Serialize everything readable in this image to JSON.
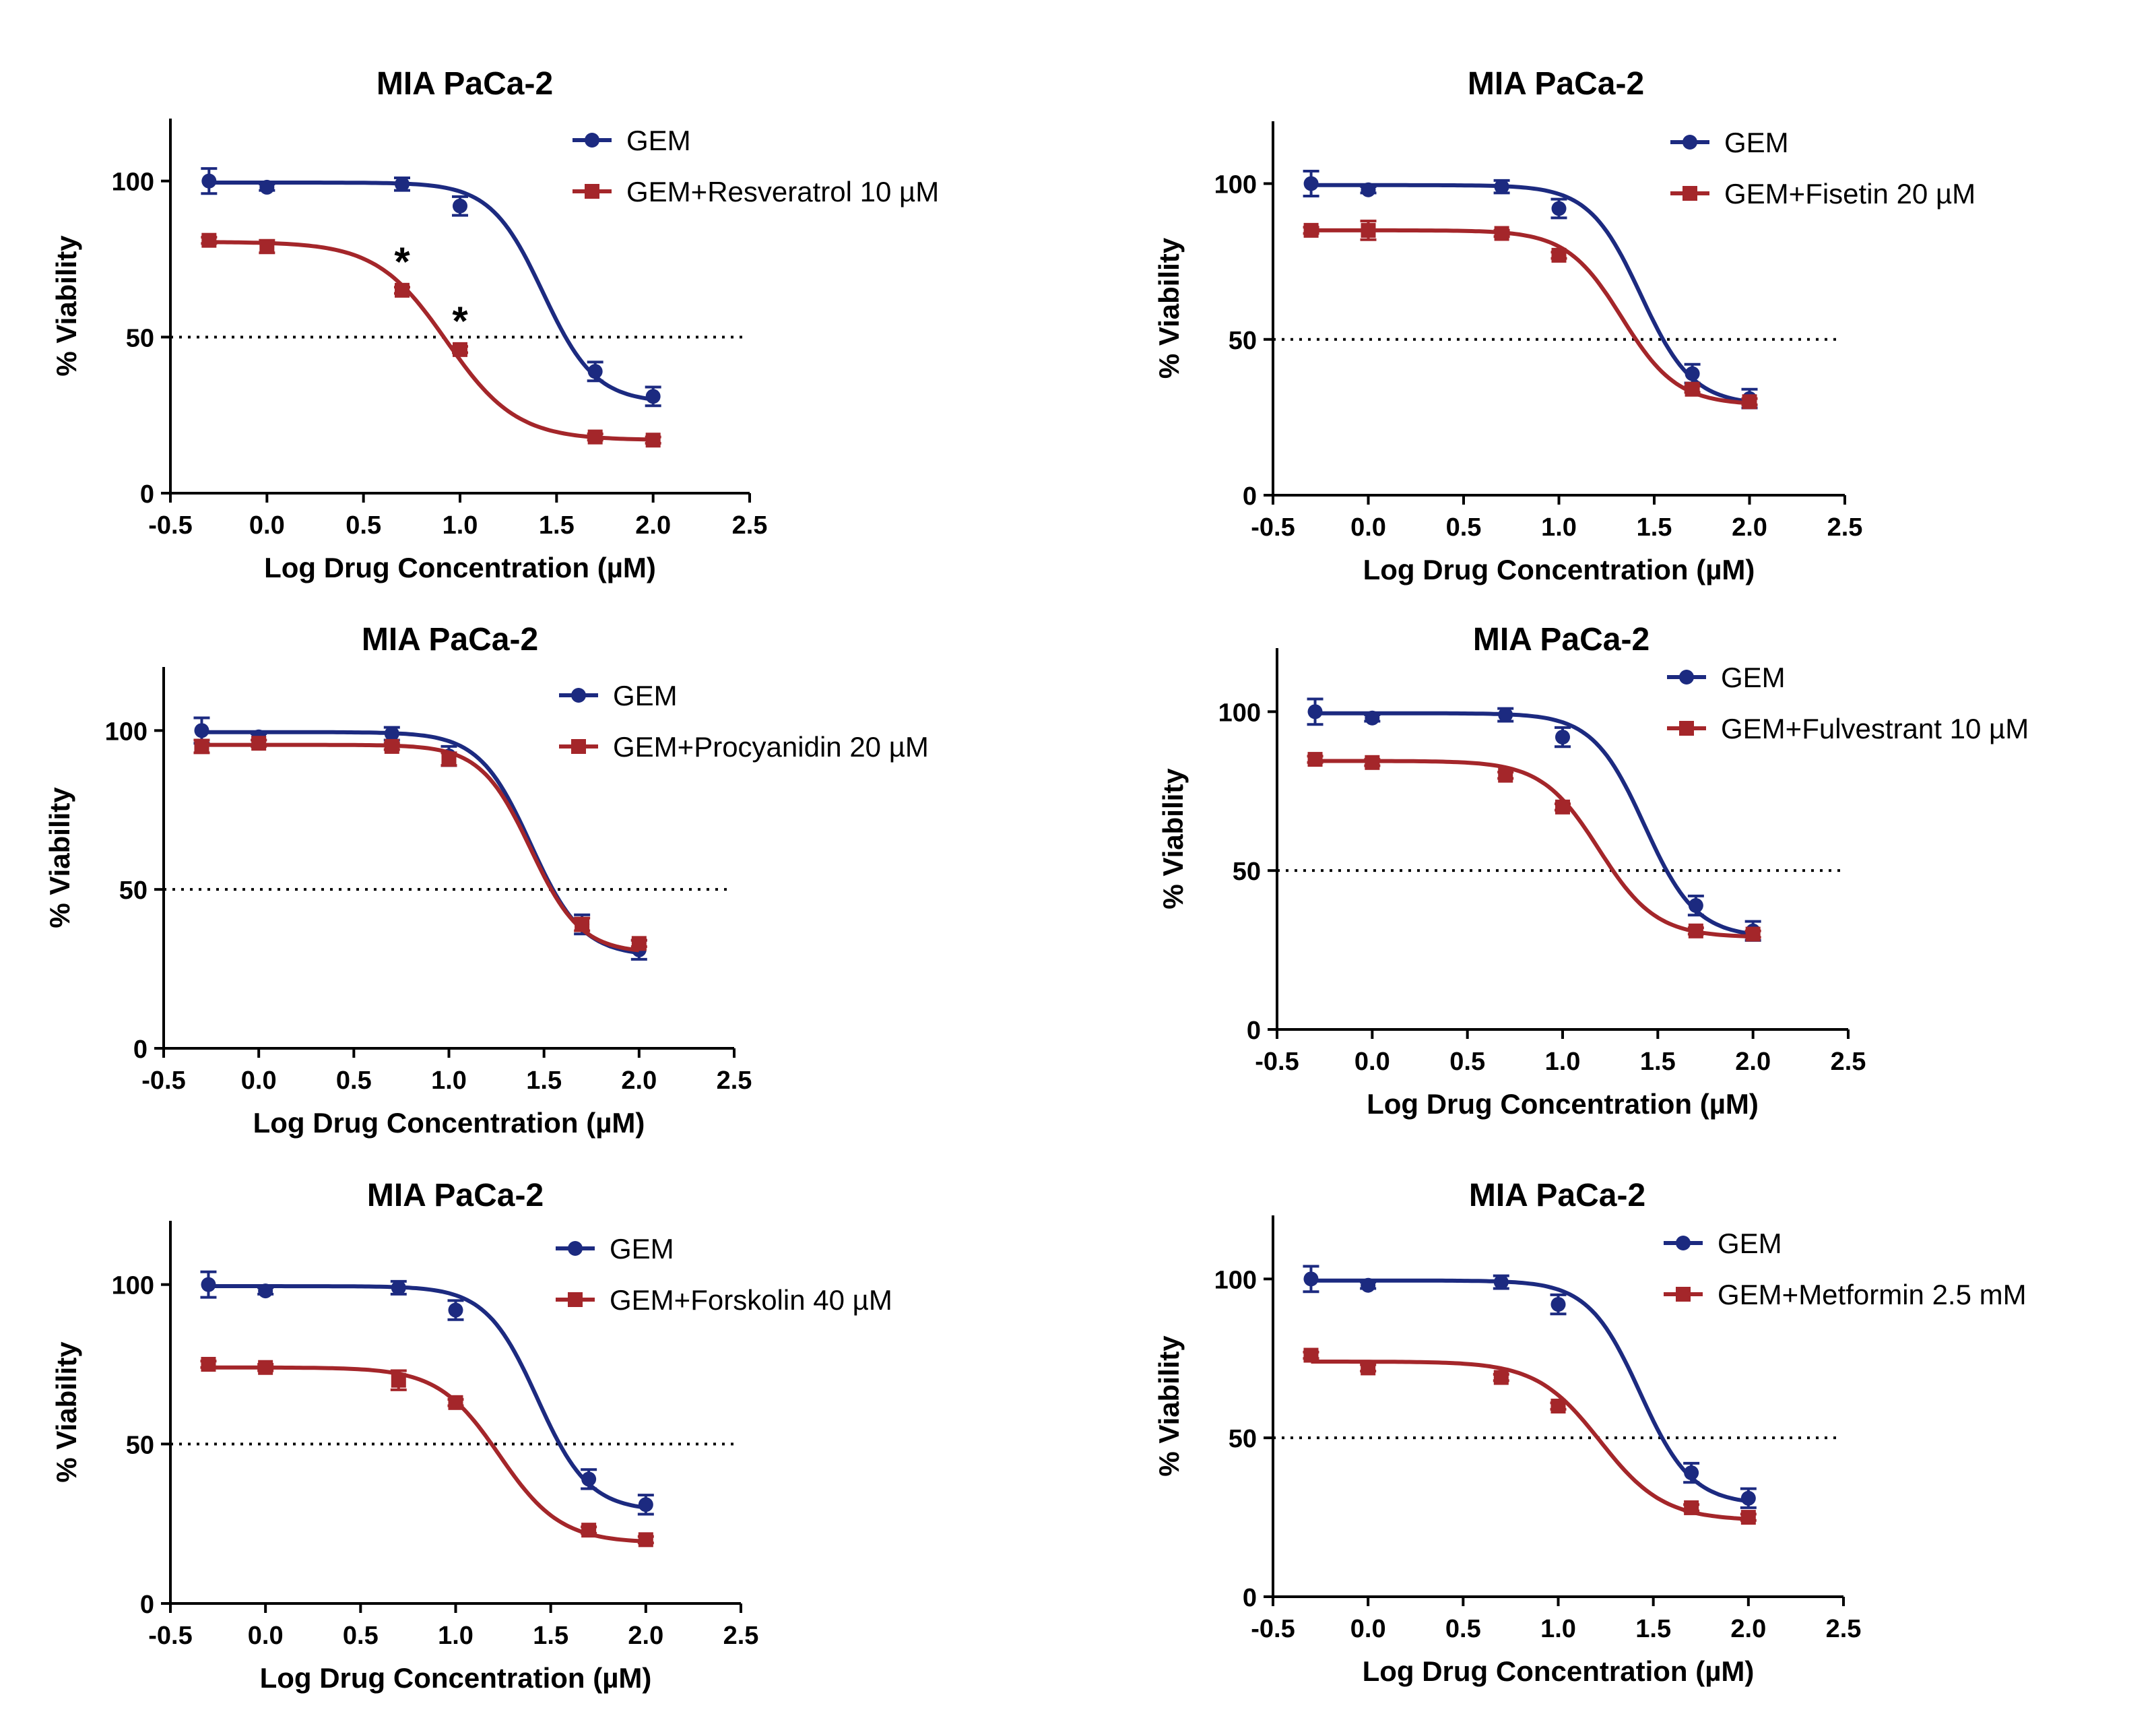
{
  "colors": {
    "gem": "#1c2a80",
    "combo": "#a4262a"
  },
  "chart_data": [
    {
      "type": "line",
      "title": "MIA PaCa-2",
      "xlabel": "Log Drug Concentration (µM)",
      "ylabel": "% Viability",
      "xlim": [
        -0.5,
        2.5
      ],
      "ylim": [
        0,
        120
      ],
      "xticks": [
        "-0.5",
        "0.0",
        "0.5",
        "1.0",
        "1.5",
        "2.0",
        "2.5"
      ],
      "yticks": [
        "0",
        "50",
        "100"
      ],
      "reference_line_y": 50,
      "legend": [
        "GEM",
        "GEM+Resveratrol 10 µM"
      ],
      "series": [
        {
          "name": "GEM",
          "x": [
            -0.3,
            0.0,
            0.7,
            1.0,
            1.7,
            2.0
          ],
          "y": [
            100,
            98,
            99,
            92,
            39,
            31
          ],
          "err": [
            4,
            1,
            2,
            3,
            3,
            3
          ],
          "fit": {
            "top": 99.5,
            "bottom": 29,
            "logic50": 1.43,
            "hill": 3.2
          }
        },
        {
          "name": "GEM+Resveratrol 10 µM",
          "x": [
            -0.3,
            0.0,
            0.7,
            1.0,
            1.7,
            2.0
          ],
          "y": [
            81,
            79,
            65,
            46,
            18,
            17
          ],
          "err": [
            1,
            2,
            1,
            1,
            1,
            1
          ],
          "fit": {
            "top": 80.5,
            "bottom": 17,
            "logic50": 0.93,
            "hill": 2.4
          }
        }
      ],
      "annotations": [
        {
          "text": "*",
          "x": 0.7,
          "y": 65
        },
        {
          "text": "*",
          "x": 1.0,
          "y": 46
        }
      ]
    },
    {
      "type": "line",
      "title": "MIA PaCa-2",
      "xlabel": "Log Drug Concentration (µM)",
      "ylabel": "% Viability",
      "xlim": [
        -0.5,
        2.5
      ],
      "ylim": [
        0,
        120
      ],
      "xticks": [
        "-0.5",
        "0.0",
        "0.5",
        "1.0",
        "1.5",
        "2.0",
        "2.5"
      ],
      "yticks": [
        "0",
        "50",
        "100"
      ],
      "reference_line_y": 50,
      "legend": [
        "GEM",
        "GEM+Fisetin 20 µM"
      ],
      "series": [
        {
          "name": "GEM",
          "x": [
            -0.3,
            0.0,
            0.7,
            1.0,
            1.7,
            2.0
          ],
          "y": [
            100,
            98,
            99,
            92,
            39,
            31
          ],
          "err": [
            4,
            1,
            2,
            3,
            3,
            3
          ],
          "fit": {
            "top": 99.5,
            "bottom": 29,
            "logic50": 1.43,
            "hill": 3.2
          }
        },
        {
          "name": "GEM+Fisetin 20 µM",
          "x": [
            -0.3,
            0.0,
            0.7,
            1.0,
            1.7,
            2.0
          ],
          "y": [
            85,
            85,
            84,
            77,
            34,
            30
          ],
          "err": [
            1,
            3,
            1,
            1,
            1,
            1
          ],
          "fit": {
            "top": 85,
            "bottom": 29,
            "logic50": 1.33,
            "hill": 3.0
          }
        }
      ],
      "annotations": []
    },
    {
      "type": "line",
      "title": "MIA PaCa-2",
      "xlabel": "Log Drug Concentration (µM)",
      "ylabel": "% Viability",
      "xlim": [
        -0.5,
        2.5
      ],
      "ylim": [
        0,
        120
      ],
      "xticks": [
        "-0.5",
        "0.0",
        "0.5",
        "1.0",
        "1.5",
        "2.0",
        "2.5"
      ],
      "yticks": [
        "0",
        "50",
        "100"
      ],
      "reference_line_y": 50,
      "legend": [
        "GEM",
        "GEM+Procyanidin 20 µM"
      ],
      "series": [
        {
          "name": "GEM",
          "x": [
            -0.3,
            0.0,
            0.7,
            1.0,
            1.7,
            2.0
          ],
          "y": [
            100,
            98,
            99,
            92,
            39,
            31
          ],
          "err": [
            4,
            1,
            2,
            3,
            3,
            3
          ],
          "fit": {
            "top": 99.5,
            "bottom": 29,
            "logic50": 1.43,
            "hill": 3.2
          }
        },
        {
          "name": "GEM+Procyanidin 20 µM",
          "x": [
            -0.3,
            0.0,
            0.7,
            1.0,
            1.7,
            2.0
          ],
          "y": [
            95,
            96,
            95,
            91,
            39,
            33
          ],
          "err": [
            2,
            1,
            1,
            2,
            2,
            1
          ],
          "fit": {
            "top": 95.5,
            "bottom": 30,
            "logic50": 1.43,
            "hill": 3.3
          }
        }
      ],
      "annotations": []
    },
    {
      "type": "line",
      "title": "MIA PaCa-2",
      "xlabel": "Log Drug Concentration (µM)",
      "ylabel": "% Viability",
      "xlim": [
        -0.5,
        2.5
      ],
      "ylim": [
        0,
        120
      ],
      "xticks": [
        "-0.5",
        "0.0",
        "0.5",
        "1.0",
        "1.5",
        "2.0",
        "2.5"
      ],
      "yticks": [
        "0",
        "50",
        "100"
      ],
      "reference_line_y": 50,
      "legend": [
        "GEM",
        "GEM+Fulvestrant 10 µM"
      ],
      "series": [
        {
          "name": "GEM",
          "x": [
            -0.3,
            0.0,
            0.7,
            1.0,
            1.7,
            2.0
          ],
          "y": [
            100,
            98,
            99,
            92,
            39,
            31
          ],
          "err": [
            4,
            1,
            2,
            3,
            3,
            3
          ],
          "fit": {
            "top": 99.5,
            "bottom": 29,
            "logic50": 1.43,
            "hill": 3.2
          }
        },
        {
          "name": "GEM+Fulvestrant 10 µM",
          "x": [
            -0.3,
            0.0,
            0.7,
            1.0,
            1.7,
            2.0
          ],
          "y": [
            85,
            84,
            80,
            70,
            31,
            30
          ],
          "err": [
            1,
            1,
            1,
            1,
            1,
            1
          ],
          "fit": {
            "top": 84.5,
            "bottom": 29,
            "logic50": 1.19,
            "hill": 2.9
          }
        }
      ],
      "annotations": []
    },
    {
      "type": "line",
      "title": "MIA PaCa-2",
      "xlabel": "Log Drug Concentration (µM)",
      "ylabel": "% Viability",
      "xlim": [
        -0.5,
        2.5
      ],
      "ylim": [
        0,
        120
      ],
      "xticks": [
        "-0.5",
        "0.0",
        "0.5",
        "1.0",
        "1.5",
        "2.0",
        "2.5"
      ],
      "yticks": [
        "0",
        "50",
        "100"
      ],
      "reference_line_y": 50,
      "legend": [
        "GEM",
        "GEM+Forskolin 40 µM"
      ],
      "series": [
        {
          "name": "GEM",
          "x": [
            -0.3,
            0.0,
            0.7,
            1.0,
            1.7,
            2.0
          ],
          "y": [
            100,
            98,
            99,
            92,
            39,
            31
          ],
          "err": [
            4,
            1,
            2,
            3,
            3,
            3
          ],
          "fit": {
            "top": 99.5,
            "bottom": 29,
            "logic50": 1.43,
            "hill": 3.2
          }
        },
        {
          "name": "GEM+Forskolin 40 µM",
          "x": [
            -0.3,
            0.0,
            0.7,
            1.0,
            1.7,
            2.0
          ],
          "y": [
            75,
            74,
            70,
            63,
            23,
            20
          ],
          "err": [
            1,
            1,
            3,
            1,
            1,
            1
          ],
          "fit": {
            "top": 74,
            "bottom": 19,
            "logic50": 1.23,
            "hill": 2.7
          }
        }
      ],
      "annotations": []
    },
    {
      "type": "line",
      "title": "MIA PaCa-2",
      "xlabel": "Log Drug Concentration (µM)",
      "ylabel": "% Viability",
      "xlim": [
        -0.5,
        2.5
      ],
      "ylim": [
        0,
        120
      ],
      "xticks": [
        "-0.5",
        "0.0",
        "0.5",
        "1.0",
        "1.5",
        "2.0",
        "2.5"
      ],
      "yticks": [
        "0",
        "50",
        "100"
      ],
      "reference_line_y": 50,
      "legend": [
        "GEM",
        "GEM+Metformin 2.5 mM"
      ],
      "series": [
        {
          "name": "GEM",
          "x": [
            -0.3,
            0.0,
            0.7,
            1.0,
            1.7,
            2.0
          ],
          "y": [
            100,
            98,
            99,
            92,
            39,
            31
          ],
          "err": [
            4,
            1,
            2,
            3,
            3,
            3
          ],
          "fit": {
            "top": 99.5,
            "bottom": 29,
            "logic50": 1.43,
            "hill": 3.2
          }
        },
        {
          "name": "GEM+Metformin 2.5 mM",
          "x": [
            -0.3,
            0.0,
            0.7,
            1.0,
            1.7,
            2.0
          ],
          "y": [
            76,
            72,
            69,
            60,
            28,
            25
          ],
          "err": [
            1,
            1,
            1,
            1,
            1,
            1
          ],
          "fit": {
            "top": 74,
            "bottom": 24,
            "logic50": 1.22,
            "hill": 2.6
          }
        }
      ],
      "annotations": []
    }
  ]
}
